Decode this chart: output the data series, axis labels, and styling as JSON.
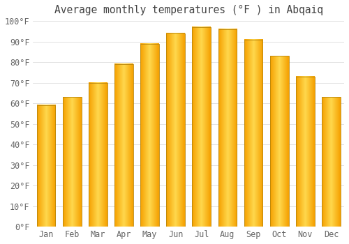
{
  "title": "Average monthly temperatures (°F ) in Abqaiq",
  "months": [
    "Jan",
    "Feb",
    "Mar",
    "Apr",
    "May",
    "Jun",
    "Jul",
    "Aug",
    "Sep",
    "Oct",
    "Nov",
    "Dec"
  ],
  "values": [
    59,
    63,
    70,
    79,
    89,
    94,
    97,
    96,
    91,
    83,
    73,
    63
  ],
  "bar_color_center": "#FFD84D",
  "bar_color_edge": "#F5A000",
  "bar_outline_color": "#B8860B",
  "background_color": "#FFFFFF",
  "plot_bg_color": "#FFFFFF",
  "grid_color": "#DDDDDD",
  "ylim": [
    0,
    100
  ],
  "yticks": [
    0,
    10,
    20,
    30,
    40,
    50,
    60,
    70,
    80,
    90,
    100
  ],
  "ytick_labels": [
    "0°F",
    "10°F",
    "20°F",
    "30°F",
    "40°F",
    "50°F",
    "60°F",
    "70°F",
    "80°F",
    "90°F",
    "100°F"
  ],
  "title_fontsize": 10.5,
  "tick_fontsize": 8.5,
  "title_color": "#444444",
  "tick_color": "#666666",
  "bar_width": 0.72
}
